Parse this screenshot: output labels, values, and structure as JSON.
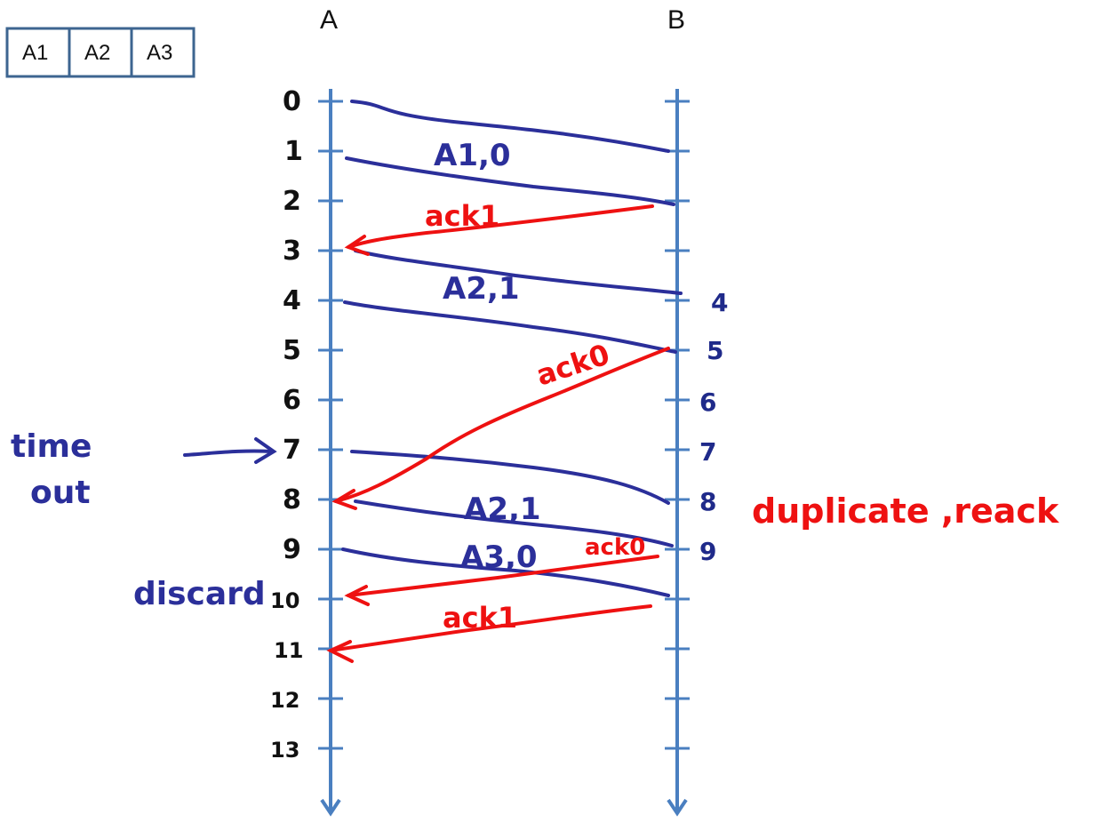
{
  "headers": {
    "a": "A",
    "b": "B"
  },
  "buffer": [
    "A1",
    "A2",
    "A3"
  ],
  "ticks_a": [
    "0",
    "1",
    "2",
    "3",
    "4",
    "5",
    "6",
    "7",
    "8",
    "9",
    "10",
    "11",
    "12",
    "13"
  ],
  "ticks_b": [
    "4",
    "5",
    "6",
    "7",
    "8",
    "9"
  ],
  "messages": [
    {
      "label": "A1,0"
    },
    {
      "label": "ack1"
    },
    {
      "label": "A2,1"
    },
    {
      "label": "ack0"
    },
    {
      "label": "A2,1"
    },
    {
      "label": "A3,0"
    },
    {
      "label": "ack0"
    },
    {
      "label": "ack1"
    }
  ],
  "notes": {
    "timeout_line1": "time",
    "timeout_line2": "out",
    "discard": "discard",
    "duplicate": "duplicate ,reack"
  },
  "colors": {
    "axis": "#4a7fc0",
    "data": "#2b2f9a",
    "ack": "#ee1111",
    "buffer_border": "#3d6590"
  }
}
